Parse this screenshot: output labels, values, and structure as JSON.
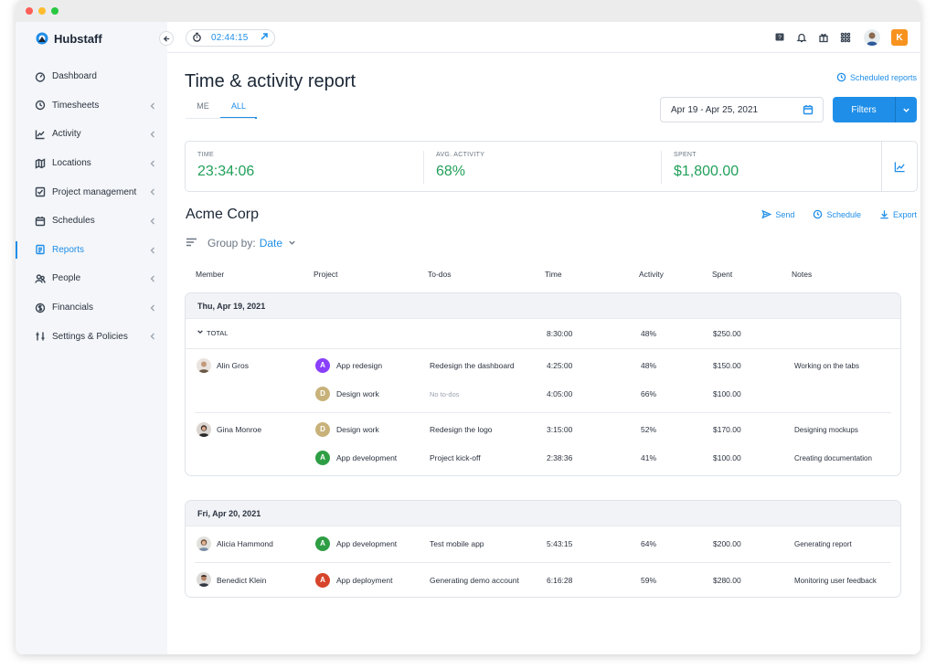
{
  "app": {
    "name": "Hubstaff"
  },
  "sidebar": {
    "items": [
      {
        "label": "Dashboard",
        "icon": "dashboard-icon",
        "chevron": false
      },
      {
        "label": "Timesheets",
        "icon": "clock-icon",
        "chevron": true
      },
      {
        "label": "Activity",
        "icon": "activity-chart-icon",
        "chevron": true
      },
      {
        "label": "Locations",
        "icon": "map-icon",
        "chevron": true
      },
      {
        "label": "Project management",
        "icon": "checkbox-icon",
        "chevron": true
      },
      {
        "label": "Schedules",
        "icon": "calendar-icon",
        "chevron": true
      },
      {
        "label": "Reports",
        "icon": "report-icon",
        "chevron": true,
        "active": true
      },
      {
        "label": "People",
        "icon": "people-icon",
        "chevron": true
      },
      {
        "label": "Financials",
        "icon": "dollar-icon",
        "chevron": true
      },
      {
        "label": "Settings & Policies",
        "icon": "sliders-icon",
        "chevron": true
      }
    ]
  },
  "topbar": {
    "timer": "02:44:15",
    "icons": [
      "help-icon",
      "bell-icon",
      "gift-icon",
      "apps-grid-icon"
    ],
    "org_initial": "K"
  },
  "page": {
    "title": "Time & activity report",
    "scheduled_reports_link": "Scheduled reports",
    "tabs": [
      "ME",
      "ALL"
    ],
    "active_tab": "ALL",
    "date_range": "Apr 19 - Apr 25, 2021",
    "filters_label": "Filters"
  },
  "summary": {
    "time": {
      "label": "TIME",
      "value": "23:34:06"
    },
    "activity": {
      "label": "AVG. ACTIVITY",
      "value": "68%"
    },
    "spent": {
      "label": "SPENT",
      "value": "$1,800.00"
    }
  },
  "client": {
    "name": "Acme Corp",
    "actions": {
      "send": "Send",
      "schedule": "Schedule",
      "export": "Export"
    },
    "group_by_label": "Group by:",
    "group_by_value": "Date"
  },
  "table": {
    "headers": [
      "Member",
      "Project",
      "To-dos",
      "Time",
      "Activity",
      "Spent",
      "Notes"
    ],
    "groups": [
      {
        "date": "Thu, Apr 19, 2021",
        "total": {
          "label": "TOTAL",
          "time": "8:30:00",
          "activity": "48%",
          "spent": "$250.00"
        },
        "members": [
          {
            "name": "Alin Gros",
            "rows": [
              {
                "project_initial": "A",
                "project_color": "#8a3ffc",
                "project": "App redesign",
                "todo": "Redesign the dashboard",
                "time": "4:25:00",
                "activity": "48%",
                "spent": "$150.00",
                "notes": "Working on the tabs"
              },
              {
                "project_initial": "D",
                "project_color": "#c8b27a",
                "project": "Design work",
                "todo": "No to-dos",
                "time": "4:05:00",
                "activity": "66%",
                "spent": "$100.00",
                "notes": ""
              }
            ]
          },
          {
            "name": "Gina Monroe",
            "rows": [
              {
                "project_initial": "D",
                "project_color": "#c8b27a",
                "project": "Design work",
                "todo": "Redesign the logo",
                "time": "3:15:00",
                "activity": "52%",
                "spent": "$170.00",
                "notes": "Designing mockups"
              },
              {
                "project_initial": "A",
                "project_color": "#2e9e44",
                "project": "App development",
                "todo": "Project kick-off",
                "time": "2:38:36",
                "activity": "41%",
                "spent": "$100.00",
                "notes": "Creating documentation"
              }
            ]
          }
        ]
      },
      {
        "date": "Fri, Apr 20, 2021",
        "members": [
          {
            "name": "Alicia Hammond",
            "rows": [
              {
                "project_initial": "A",
                "project_color": "#2e9e44",
                "project": "App development",
                "todo": "Test mobile app",
                "time": "5:43:15",
                "activity": "64%",
                "spent": "$200.00",
                "notes": "Generating report"
              }
            ]
          },
          {
            "name": "Benedict Klein",
            "rows": [
              {
                "project_initial": "A",
                "project_color": "#d6452b",
                "project": "App deployment",
                "todo": "Generating demo account",
                "time": "6:16:28",
                "activity": "59%",
                "spent": "$280.00",
                "notes": "Monitoring user feedback"
              }
            ]
          }
        ]
      }
    ]
  },
  "colors": {
    "accent": "#1f8ee8",
    "positive": "#22a05a"
  }
}
